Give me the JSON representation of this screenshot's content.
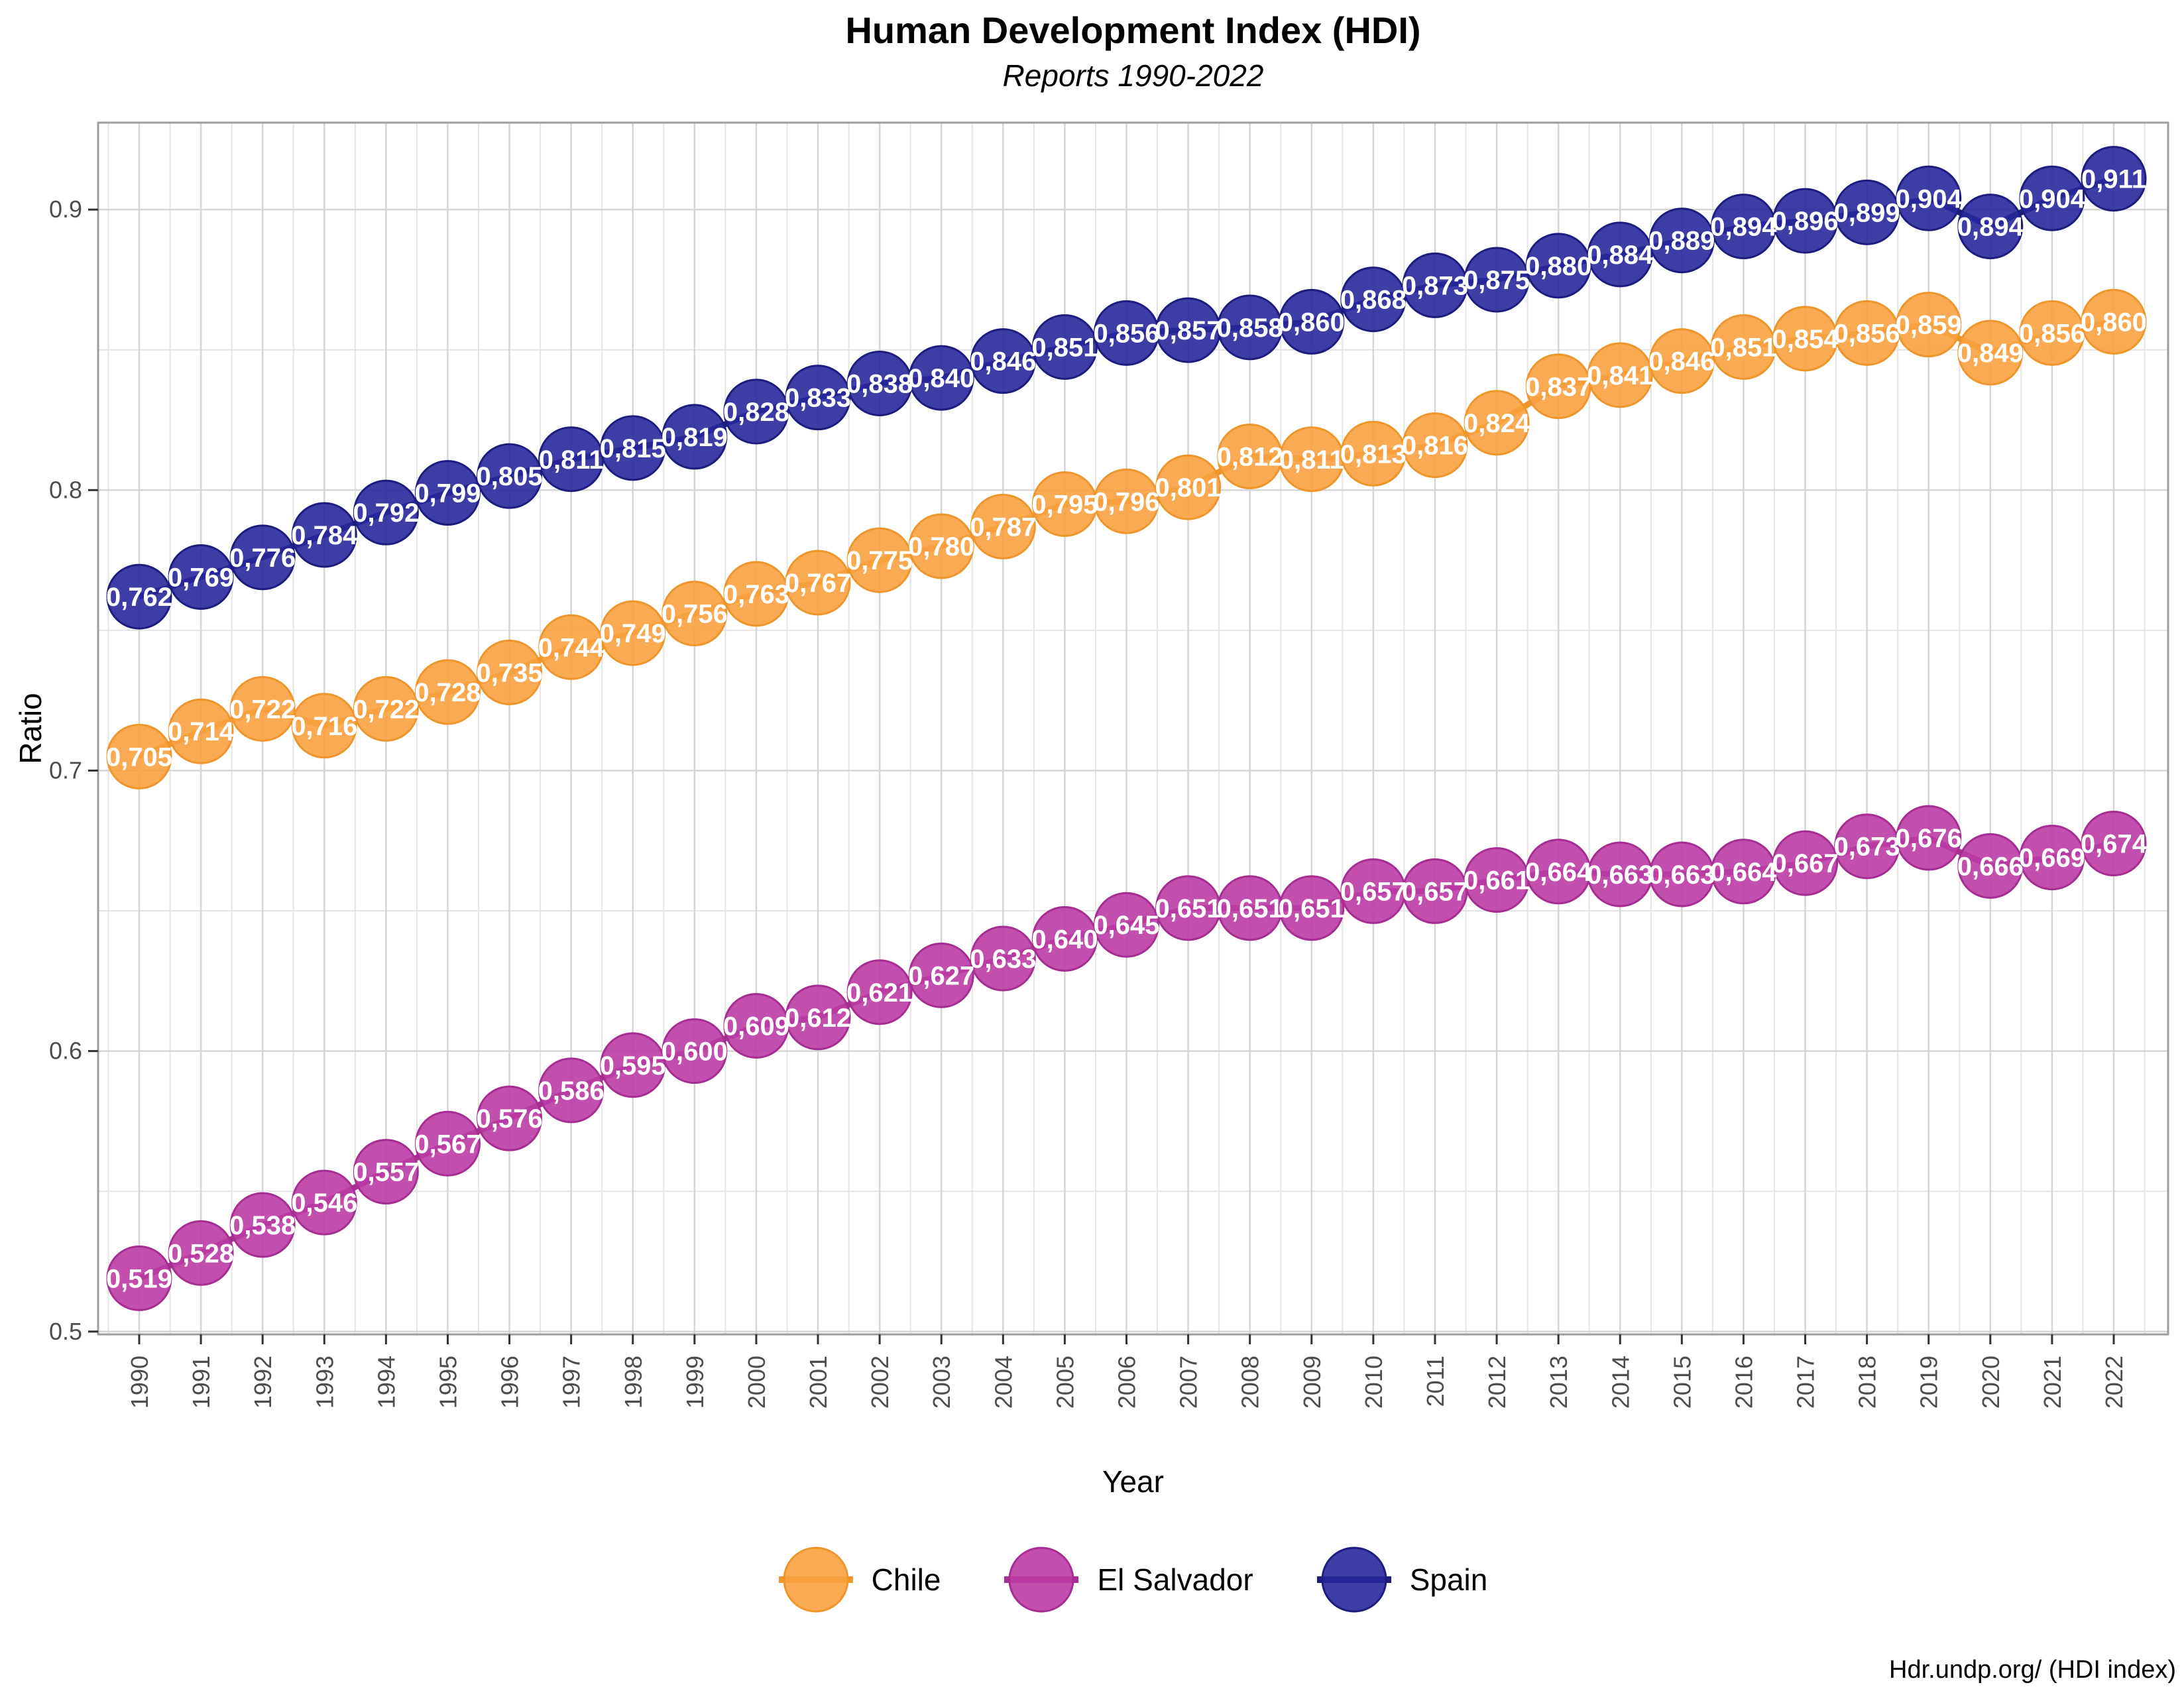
{
  "header": {
    "title": "Human Development Index (HDI)",
    "subtitle": "Reports 1990-2022"
  },
  "source_note": "Hdr.undp.org/ (HDI index)",
  "decimal_separator": ",",
  "axes": {
    "x_label": "Year",
    "y_label": "Ratio",
    "y_ticks": [
      0.5,
      0.6,
      0.7,
      0.8,
      0.9
    ],
    "y_minor_ticks": [
      0.55,
      0.65,
      0.75,
      0.85
    ],
    "ylim": [
      0.499,
      0.931
    ],
    "x_tick_labels": [
      "1990",
      "1991",
      "1992",
      "1993",
      "1994",
      "1995",
      "1996",
      "1997",
      "1998",
      "1999",
      "2000",
      "2001",
      "2002",
      "2003",
      "2004",
      "2005",
      "2006",
      "2007",
      "2008",
      "2009",
      "2010",
      "2011",
      "2012",
      "2013",
      "2014",
      "2015",
      "2016",
      "2017",
      "2018",
      "2019",
      "2020",
      "2021",
      "2022"
    ],
    "grid": "major-and-minor",
    "x_label_rotation_deg": -90
  },
  "chart_data": {
    "type": "line",
    "point_labels": "inside",
    "legend_position": "bottom",
    "x": [
      1990,
      1991,
      1992,
      1993,
      1994,
      1995,
      1996,
      1997,
      1998,
      1999,
      2000,
      2001,
      2002,
      2003,
      2004,
      2005,
      2006,
      2007,
      2008,
      2009,
      2010,
      2011,
      2012,
      2013,
      2014,
      2015,
      2016,
      2017,
      2018,
      2019,
      2020,
      2021,
      2022
    ],
    "series": [
      {
        "name": "Chile",
        "color": "#F8A13F",
        "dark_color": "#EE962B",
        "values": [
          0.705,
          0.714,
          0.722,
          0.716,
          0.722,
          0.728,
          0.735,
          0.744,
          0.749,
          0.756,
          0.763,
          0.767,
          0.775,
          0.78,
          0.787,
          0.795,
          0.796,
          0.801,
          0.812,
          0.811,
          0.813,
          0.816,
          0.824,
          0.837,
          0.841,
          0.846,
          0.851,
          0.854,
          0.856,
          0.859,
          0.849,
          0.856,
          0.86
        ]
      },
      {
        "name": "El Salvador",
        "color": "#BB3CA4",
        "dark_color": "#A62E92",
        "values": [
          0.519,
          0.528,
          0.538,
          0.546,
          0.557,
          0.567,
          0.576,
          0.586,
          0.595,
          0.6,
          0.609,
          0.612,
          0.621,
          0.627,
          0.633,
          0.64,
          0.645,
          0.651,
          0.651,
          0.651,
          0.657,
          0.657,
          0.661,
          0.664,
          0.663,
          0.663,
          0.664,
          0.667,
          0.673,
          0.676,
          0.666,
          0.669,
          0.674
        ]
      },
      {
        "name": "Spain",
        "color": "#28289B",
        "dark_color": "#1D1D80",
        "values": [
          0.762,
          0.769,
          0.776,
          0.784,
          0.792,
          0.799,
          0.805,
          0.811,
          0.815,
          0.819,
          0.828,
          0.833,
          0.838,
          0.84,
          0.846,
          0.851,
          0.856,
          0.857,
          0.858,
          0.86,
          0.868,
          0.873,
          0.875,
          0.88,
          0.884,
          0.889,
          0.894,
          0.896,
          0.899,
          0.904,
          0.894,
          0.904,
          0.911
        ]
      }
    ]
  }
}
